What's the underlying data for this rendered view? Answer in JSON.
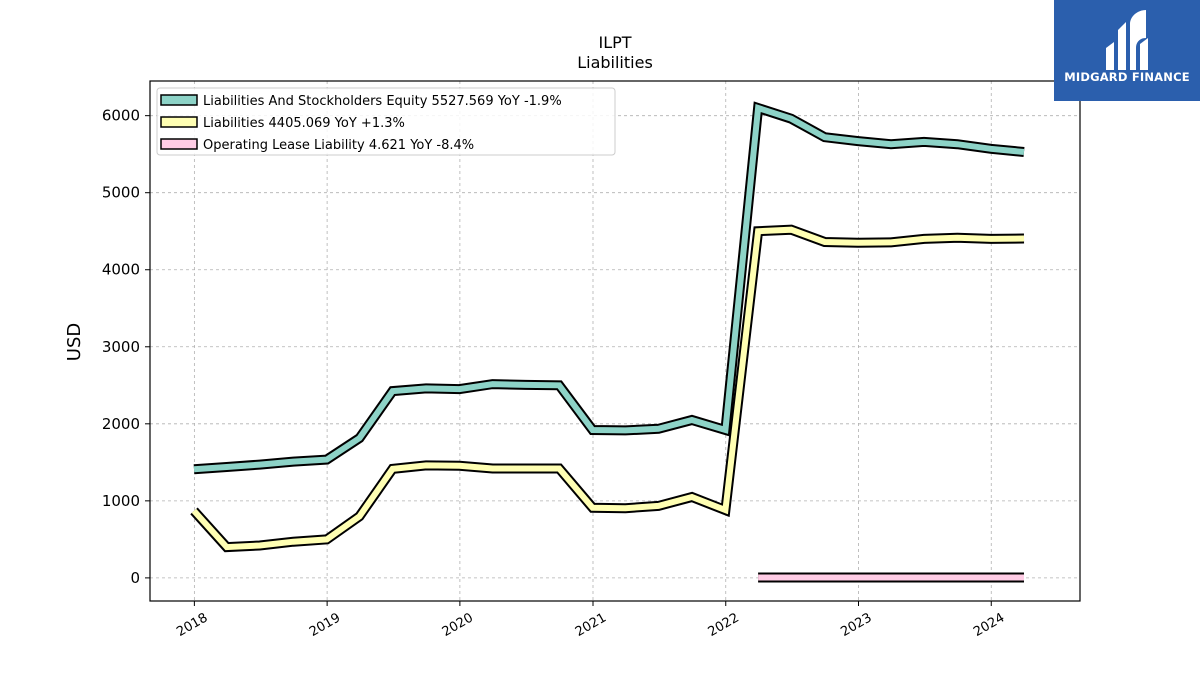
{
  "chart_data": {
    "type": "line",
    "title": "ILPT",
    "subtitle": "Liabilities",
    "ylabel": "USD",
    "xlabel": "",
    "xlim": [
      "2017-09-01",
      "2024-09-01"
    ],
    "ylim": [
      -300,
      6450
    ],
    "yticks": [
      0,
      1000,
      2000,
      3000,
      4000,
      5000,
      6000
    ],
    "xticks": [
      "2018",
      "2019",
      "2020",
      "2021",
      "2022",
      "2023",
      "2024"
    ],
    "grid": true,
    "legend_position": "top-left",
    "series": [
      {
        "name": "Liabilities And Stockholders Equity",
        "legend": "Liabilities And Stockholders Equity  5527.569 YoY -1.9%",
        "color": "#8dd3c7",
        "x": [
          "2017-12-31",
          "2018-03-31",
          "2018-06-30",
          "2018-09-30",
          "2018-12-31",
          "2019-03-31",
          "2019-06-30",
          "2019-09-30",
          "2019-12-31",
          "2020-03-31",
          "2020-06-30",
          "2020-09-30",
          "2020-12-31",
          "2021-03-31",
          "2021-06-30",
          "2021-09-30",
          "2021-12-31",
          "2022-03-31",
          "2022-06-30",
          "2022-09-30",
          "2022-12-31",
          "2023-03-31",
          "2023-06-30",
          "2023-09-30",
          "2023-12-31",
          "2024-03-31"
        ],
        "y": [
          1410,
          1440,
          1470,
          1510,
          1535,
          1815,
          2425,
          2460,
          2450,
          2515,
          2505,
          2500,
          1920,
          1915,
          1935,
          2050,
          1920,
          6100,
          5960,
          5720,
          5670,
          5630,
          5660,
          5630,
          5570,
          5528
        ]
      },
      {
        "name": "Liabilities",
        "legend": "Liabilities  4405.069 YoY +1.3%",
        "color": "#ffffb3",
        "x": [
          "2017-12-31",
          "2018-03-31",
          "2018-06-30",
          "2018-09-30",
          "2018-12-31",
          "2019-03-31",
          "2019-06-30",
          "2019-09-30",
          "2019-12-31",
          "2020-03-31",
          "2020-06-30",
          "2020-09-30",
          "2020-12-31",
          "2021-03-31",
          "2021-06-30",
          "2021-09-30",
          "2021-12-31",
          "2022-03-31",
          "2022-06-30",
          "2022-09-30",
          "2022-12-31",
          "2023-03-31",
          "2023-06-30",
          "2023-09-30",
          "2023-12-31",
          "2024-03-31"
        ],
        "y": [
          870,
          400,
          420,
          470,
          500,
          800,
          1415,
          1460,
          1455,
          1420,
          1420,
          1420,
          910,
          905,
          935,
          1050,
          880,
          4500,
          4520,
          4360,
          4350,
          4355,
          4400,
          4415,
          4400,
          4405
        ]
      },
      {
        "name": "Operating Lease Liability",
        "legend": "Operating Lease Liability  4.621 YoY -8.4%",
        "color": "#ffcce5",
        "x": [
          "2022-03-31",
          "2022-06-30",
          "2022-09-30",
          "2022-12-31",
          "2023-03-31",
          "2023-06-30",
          "2023-09-30",
          "2023-12-31",
          "2024-03-31"
        ],
        "y": [
          5.4,
          5.3,
          5.2,
          5.1,
          5.05,
          4.95,
          4.85,
          4.75,
          4.621
        ]
      }
    ]
  },
  "logo": {
    "text": "MIDGARD FINANCE",
    "color": "#2b5fad"
  }
}
